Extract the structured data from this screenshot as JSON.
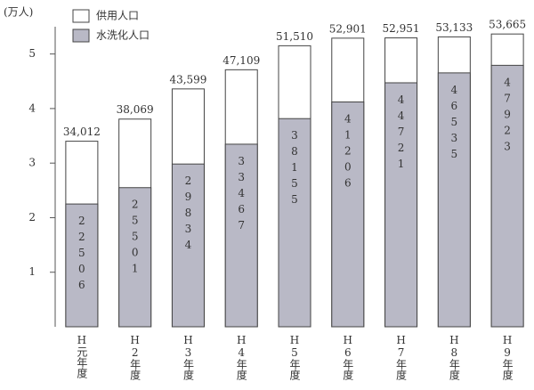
{
  "chart_data": {
    "type": "bar",
    "y_label": "(万人)",
    "categories": [
      "H元年度",
      "H2年度",
      "H3年度",
      "H4年度",
      "H5年度",
      "H6年度",
      "H7年度",
      "H8年度",
      "H9年度"
    ],
    "series": [
      {
        "name": "供用人口",
        "color": "#ffffff",
        "values": [
          3.4012,
          3.8069,
          4.3599,
          4.7109,
          5.151,
          5.2901,
          5.2951,
          5.3133,
          5.3665
        ],
        "value_labels": [
          "34,012",
          "38,069",
          "43,599",
          "47,109",
          "51,510",
          "52,901",
          "52,951",
          "53,133",
          "53,665"
        ]
      },
      {
        "name": "水洗化人口",
        "color": "#b9b9c6",
        "values": [
          2.2506,
          2.5501,
          2.9834,
          3.3467,
          3.8155,
          4.1206,
          4.4721,
          4.6535,
          4.7923
        ],
        "value_labels": [
          "22506",
          "25501",
          "29834",
          "33467",
          "38155",
          "41206",
          "44721",
          "46535",
          "47923"
        ]
      }
    ],
    "ylim": [
      0,
      5.5
    ],
    "yticks": [
      1,
      2,
      3,
      4,
      5
    ],
    "grid": false
  }
}
